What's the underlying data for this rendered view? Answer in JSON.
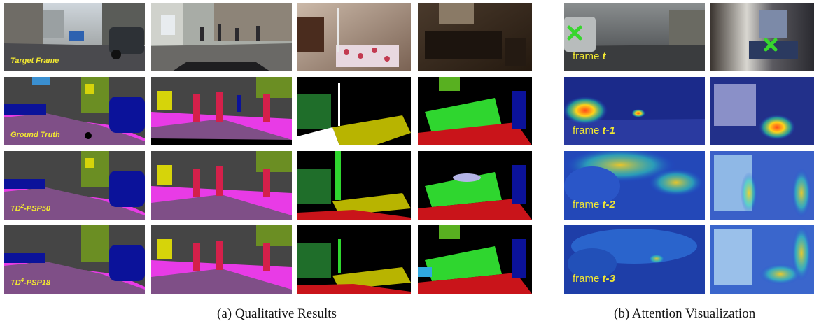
{
  "panel_a": {
    "row_labels": {
      "target": "Target Frame",
      "gt": "Ground Truth",
      "m1_prefix": "TD",
      "m1_sup": "2",
      "m1_suffix": "-PSP50",
      "m2_prefix": "TD",
      "m2_sup": "4",
      "m2_suffix": "-PSP18"
    },
    "caption": "(a) Qualitative Results"
  },
  "panel_b": {
    "frames": [
      {
        "prefix": "frame ",
        "t": "t"
      },
      {
        "prefix": "frame ",
        "t": "t-1"
      },
      {
        "prefix": "frame ",
        "t": "t-2"
      },
      {
        "prefix": "frame ",
        "t": "t-3"
      }
    ],
    "caption": "(b) Attention Visualization"
  },
  "colors": {
    "road": "#7f4f87",
    "sidewalk": "#e83be6",
    "vehicle": "#0b129a",
    "person": "#d4204a",
    "vegetation": "#6b8e23",
    "sign": "#d6d40a",
    "building": "#454545",
    "sky": "#3a8fd0",
    "bed_floor": "#b8b400",
    "furniture": "#2d8a2d",
    "indoor_floor": "#c9141a",
    "marker": "#37d62e",
    "label_yellow": "#f2e832"
  }
}
